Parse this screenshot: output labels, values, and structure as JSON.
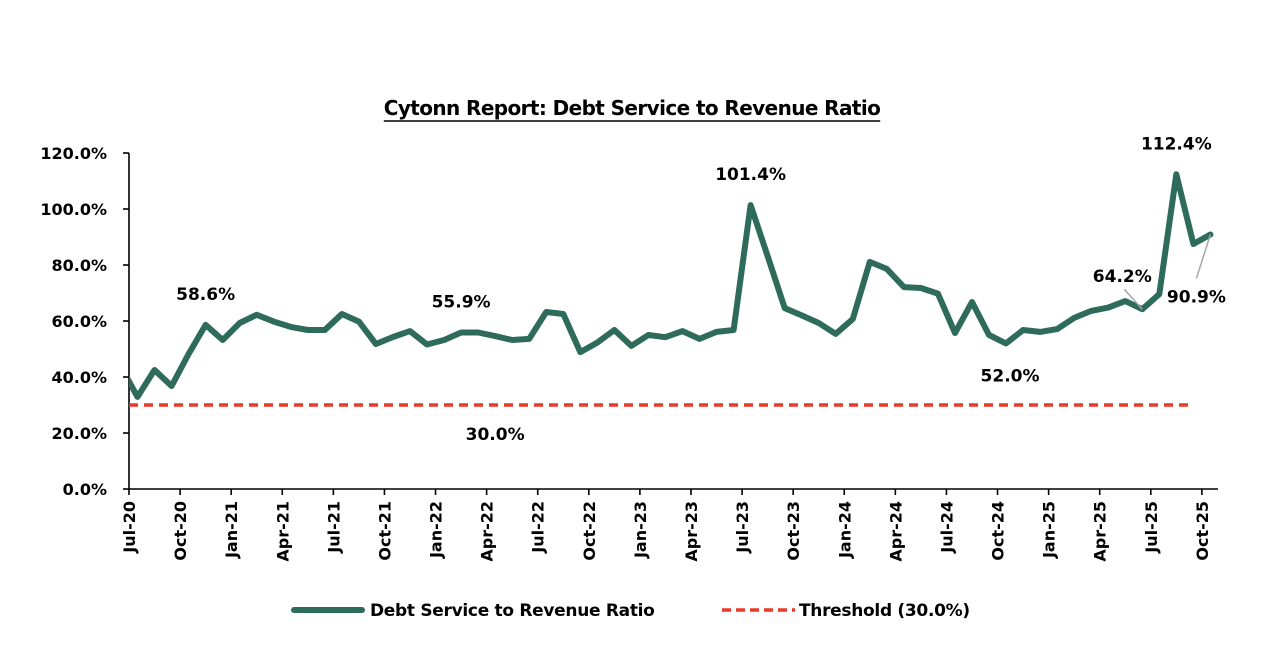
{
  "chart_data": {
    "type": "line",
    "title": "Cytonn Report: Debt Service to Revenue Ratio",
    "xlabel": "",
    "ylabel": "",
    "ylim": [
      0,
      120
    ],
    "yticks": [
      0,
      20,
      40,
      60,
      80,
      100,
      120
    ],
    "ytick_labels": [
      "0.0%",
      "20.0%",
      "40.0%",
      "60.0%",
      "80.0%",
      "100.0%",
      "120.0%"
    ],
    "xtick_labels": [
      "Jul-20",
      "Oct-20",
      "Jan-21",
      "Apr-21",
      "Jul-21",
      "Oct-21",
      "Jan-22",
      "Apr-22",
      "Jul-22",
      "Oct-22",
      "Jan-23",
      "Apr-23",
      "Jul-23",
      "Oct-23",
      "Jan-24",
      "Apr-24",
      "Jul-24",
      "Oct-24",
      "Jan-25",
      "Apr-25",
      "Jul-25",
      "Oct-25"
    ],
    "x_range": [
      "Jul-20",
      "Oct-25"
    ],
    "grid": false,
    "legend_position": "bottom",
    "categories": [
      "Jun-20",
      "Jul-20",
      "Aug-20",
      "Sep-20",
      "Oct-20",
      "Nov-20",
      "Dec-20",
      "Jan-21",
      "Feb-21",
      "Mar-21",
      "Apr-21",
      "May-21",
      "Jun-21",
      "Jul-21",
      "Aug-21",
      "Sep-21",
      "Oct-21",
      "Nov-21",
      "Dec-21",
      "Jan-22",
      "Feb-22",
      "Mar-22",
      "Apr-22",
      "May-22",
      "Jun-22",
      "Jul-22",
      "Aug-22",
      "Sep-22",
      "Oct-22",
      "Nov-22",
      "Dec-22",
      "Jan-23",
      "Feb-23",
      "Mar-23",
      "Apr-23",
      "May-23",
      "Jun-23",
      "Jul-23",
      "Aug-23",
      "Sep-23",
      "Oct-23",
      "Nov-23",
      "Dec-23",
      "Jan-24",
      "Feb-24",
      "Mar-24",
      "Apr-24",
      "May-24",
      "Jun-24",
      "Jul-24",
      "Aug-24",
      "Sep-24",
      "Oct-24",
      "Nov-24",
      "Dec-24",
      "Jan-25",
      "Feb-25",
      "Mar-25",
      "Apr-25",
      "May-25",
      "Jun-25",
      "Jul-25",
      "Aug-25",
      "Sep-25",
      "Oct-25"
    ],
    "series": [
      {
        "name": "Debt Service to Revenue Ratio",
        "color": "#2E6B5A",
        "style": "solid",
        "values": [
          44.0,
          32.9,
          42.5,
          36.8,
          48.2,
          58.6,
          53.2,
          59.3,
          62.2,
          59.8,
          57.9,
          56.8,
          56.8,
          62.5,
          59.8,
          51.8,
          54.3,
          56.4,
          51.6,
          53.2,
          55.9,
          55.9,
          54.6,
          53.2,
          53.6,
          63.2,
          62.5,
          48.9,
          52.3,
          56.8,
          51.1,
          55.0,
          54.2,
          56.4,
          53.6,
          56.1,
          56.8,
          101.4,
          83.2,
          64.6,
          62.0,
          59.3,
          55.4,
          60.7,
          81.1,
          78.6,
          72.1,
          71.8,
          69.8,
          55.7,
          66.8,
          55.0,
          52.0,
          56.8,
          56.1,
          57.1,
          61.1,
          63.6,
          64.8,
          67.1,
          64.2,
          69.6,
          112.4,
          87.5,
          90.9
        ]
      },
      {
        "name": "Threshold (30.0%)",
        "color": "#E8392A",
        "style": "dashed",
        "value": 30.0
      }
    ],
    "annotations": [
      {
        "text": "58.6%",
        "category": "Nov-20",
        "value": 58.6
      },
      {
        "text": "55.9%",
        "category": "Feb-22",
        "value": 55.9
      },
      {
        "text": "30.0%",
        "category": "Apr-22",
        "value": 30.0
      },
      {
        "text": "101.4%",
        "category": "Jul-23",
        "value": 101.4
      },
      {
        "text": "52.0%",
        "category": "Oct-24",
        "value": 52.0
      },
      {
        "text": "64.2%",
        "category": "Jun-25",
        "value": 64.2
      },
      {
        "text": "112.4%",
        "category": "Aug-25",
        "value": 112.4
      },
      {
        "text": "90.9%",
        "category": "Oct-25",
        "value": 90.9
      }
    ]
  }
}
